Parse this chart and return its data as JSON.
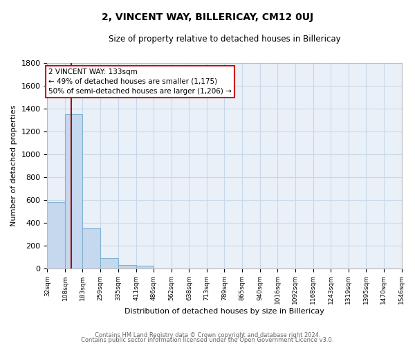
{
  "title": "2, VINCENT WAY, BILLERICAY, CM12 0UJ",
  "subtitle": "Size of property relative to detached houses in Billericay",
  "xlabel": "Distribution of detached houses by size in Billericay",
  "ylabel": "Number of detached properties",
  "footer_line1": "Contains HM Land Registry data © Crown copyright and database right 2024.",
  "footer_line2": "Contains public sector information licensed under the Open Government Licence v3.0.",
  "bin_edges": [
    32,
    108,
    183,
    259,
    335,
    411,
    486,
    562,
    638,
    713,
    789,
    865,
    940,
    1016,
    1092,
    1168,
    1243,
    1319,
    1395,
    1470,
    1546
  ],
  "bin_labels": [
    "32sqm",
    "108sqm",
    "183sqm",
    "259sqm",
    "335sqm",
    "411sqm",
    "486sqm",
    "562sqm",
    "638sqm",
    "713sqm",
    "789sqm",
    "865sqm",
    "940sqm",
    "1016sqm",
    "1092sqm",
    "1168sqm",
    "1243sqm",
    "1319sqm",
    "1395sqm",
    "1470sqm",
    "1546sqm"
  ],
  "counts": [
    580,
    1350,
    350,
    90,
    30,
    20,
    0,
    0,
    0,
    0,
    0,
    0,
    0,
    0,
    0,
    0,
    0,
    0,
    0,
    0
  ],
  "bar_color": "#c5d8ed",
  "bar_edge_color": "#7fb3d3",
  "grid_color": "#c8d8e8",
  "bg_color": "#eaf0f8",
  "fig_color": "#ffffff",
  "property_size": 133,
  "red_line_color": "#aa0000",
  "annotation_text_line1": "2 VINCENT WAY: 133sqm",
  "annotation_text_line2": "← 49% of detached houses are smaller (1,175)",
  "annotation_text_line3": "50% of semi-detached houses are larger (1,206) →",
  "annotation_box_color": "white",
  "annotation_box_edge": "#cc0000",
  "ylim": [
    0,
    1800
  ],
  "yticks": [
    0,
    200,
    400,
    600,
    800,
    1000,
    1200,
    1400,
    1600,
    1800
  ]
}
